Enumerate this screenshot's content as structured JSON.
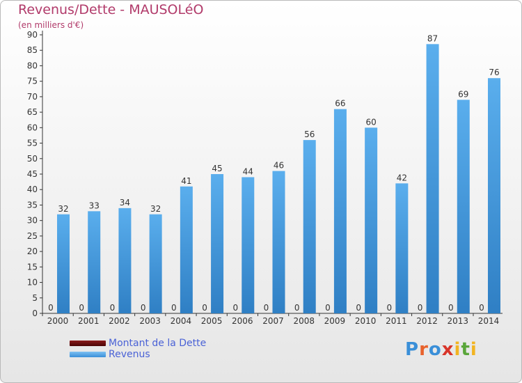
{
  "chart_data": {
    "type": "bar",
    "title": "Revenus/Dette - MAUSOLéO",
    "subtitle": "(en milliers d'€)",
    "categories": [
      "2000",
      "2001",
      "2002",
      "2003",
      "2004",
      "2005",
      "2006",
      "2007",
      "2008",
      "2009",
      "2010",
      "2011",
      "2012",
      "2013",
      "2014"
    ],
    "series": [
      {
        "name": "Montant de la Dette",
        "color": "#6b0a0a",
        "values": [
          0,
          0,
          0,
          0,
          0,
          0,
          0,
          0,
          0,
          0,
          0,
          0,
          0,
          0,
          0
        ]
      },
      {
        "name": "Revenus",
        "color": "#4a9de0",
        "values": [
          32,
          33,
          34,
          32,
          41,
          45,
          44,
          46,
          56,
          66,
          60,
          42,
          87,
          69,
          76
        ]
      }
    ],
    "ylim": [
      0,
      90
    ],
    "yticks": [
      0,
      5,
      10,
      15,
      20,
      25,
      30,
      35,
      40,
      45,
      50,
      55,
      60,
      65,
      70,
      75,
      80,
      85,
      90
    ],
    "grid": false,
    "legend_position": "bottom-left"
  },
  "logo": {
    "text": "Proxiti",
    "letters": [
      {
        "ch": "P",
        "color": "#3a8fd8"
      },
      {
        "ch": "r",
        "color": "#e8622c"
      },
      {
        "ch": "o",
        "color": "#3a8fd8"
      },
      {
        "ch": "x",
        "color": "#d8352a"
      },
      {
        "ch": "i",
        "color": "#f2b422"
      },
      {
        "ch": "t",
        "color": "#5aa63a"
      },
      {
        "ch": "i",
        "color": "#f2b422"
      }
    ]
  }
}
